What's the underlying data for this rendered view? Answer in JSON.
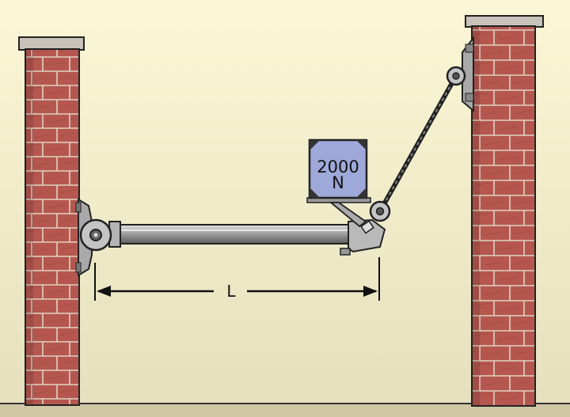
{
  "diagram": {
    "load": {
      "line1": "2000",
      "line2": "N"
    },
    "dimension_label": "L"
  },
  "colors": {
    "sky_top": "#fbf7d6",
    "sky_bottom": "#e6e1bd",
    "brick": "#b5574f",
    "brick_dark": "#8f3e38",
    "mortar": "#d6c9b7",
    "cap": "#c8c3ba",
    "steel": "#c7c7c7",
    "steel_dark": "#555555",
    "box_fill": "#9ea8d9",
    "ink": "#111111"
  }
}
